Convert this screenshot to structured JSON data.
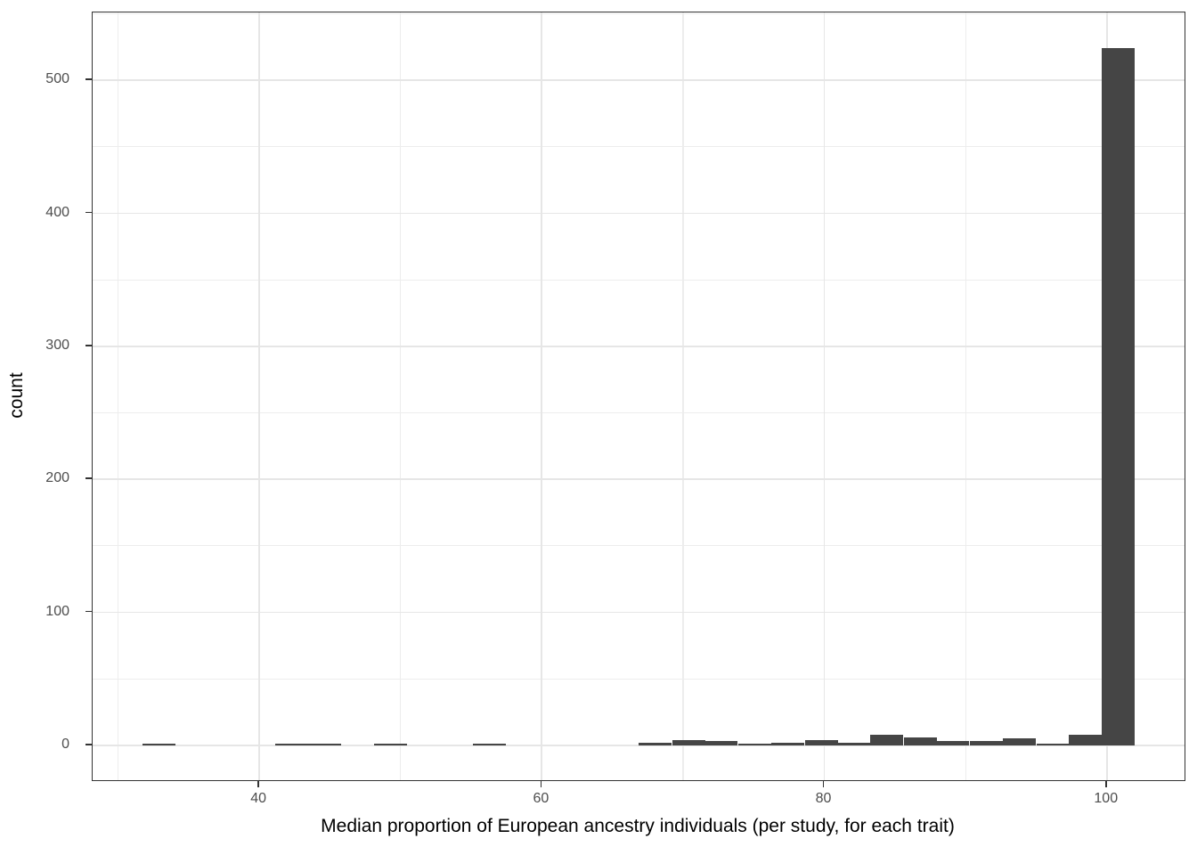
{
  "chart_data": {
    "type": "bar",
    "subtype": "histogram",
    "title": "",
    "xlabel": "Median proportion of European ancestry individuals (per study, for each trait)",
    "ylabel": "count",
    "xlim": [
      28.2,
      105.5
    ],
    "ylim": [
      -26.2,
      551
    ],
    "x_major_ticks": [
      40,
      60,
      80,
      100
    ],
    "x_minor_ticks": [
      30,
      50,
      70,
      90
    ],
    "y_major_ticks": [
      0,
      100,
      200,
      300,
      400,
      500
    ],
    "y_minor_ticks": [
      50,
      150,
      250,
      350,
      450,
      550
    ],
    "grid": true,
    "legend_position": "none",
    "binwidth": 2.335,
    "bins": [
      {
        "center": 32.9,
        "count": 1
      },
      {
        "center": 42.3,
        "count": 1
      },
      {
        "center": 44.6,
        "count": 1
      },
      {
        "center": 49.3,
        "count": 1
      },
      {
        "center": 56.3,
        "count": 1
      },
      {
        "center": 68.0,
        "count": 2
      },
      {
        "center": 70.4,
        "count": 4
      },
      {
        "center": 72.7,
        "count": 3
      },
      {
        "center": 75.1,
        "count": 1
      },
      {
        "center": 77.4,
        "count": 2
      },
      {
        "center": 79.8,
        "count": 4
      },
      {
        "center": 82.1,
        "count": 2
      },
      {
        "center": 84.4,
        "count": 8
      },
      {
        "center": 86.8,
        "count": 6
      },
      {
        "center": 89.1,
        "count": 3
      },
      {
        "center": 91.5,
        "count": 3
      },
      {
        "center": 93.8,
        "count": 5
      },
      {
        "center": 96.2,
        "count": 1
      },
      {
        "center": 98.5,
        "count": 8
      },
      {
        "center": 100.8,
        "count": 524
      }
    ],
    "colors": {
      "bar_fill": "#454545",
      "panel_border": "#333333",
      "major_grid": "#E6E6E6",
      "minor_grid": "#EDEDED",
      "tick_text": "#4D4D4D",
      "axis_title": "#000000",
      "tick_mark": "#333333",
      "background": "#FFFFFF"
    }
  }
}
